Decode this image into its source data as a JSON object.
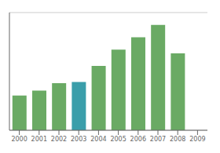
{
  "chart_data": {
    "type": "bar",
    "categories": [
      "2000",
      "2001",
      "2002",
      "2003",
      "2004",
      "2005",
      "2006",
      "2007",
      "2008",
      "2009"
    ],
    "values": [
      28,
      32,
      38,
      39,
      52,
      65,
      75,
      85,
      62,
      0
    ],
    "colors": [
      "#6aaa64",
      "#6aaa64",
      "#6aaa64",
      "#3a9eaa",
      "#6aaa64",
      "#6aaa64",
      "#6aaa64",
      "#6aaa64",
      "#6aaa64",
      "#6aaa64"
    ],
    "ylim": [
      0,
      95
    ],
    "yticks": [
      23,
      46,
      69,
      92
    ],
    "grid": true,
    "tick_labels": "x"
  }
}
